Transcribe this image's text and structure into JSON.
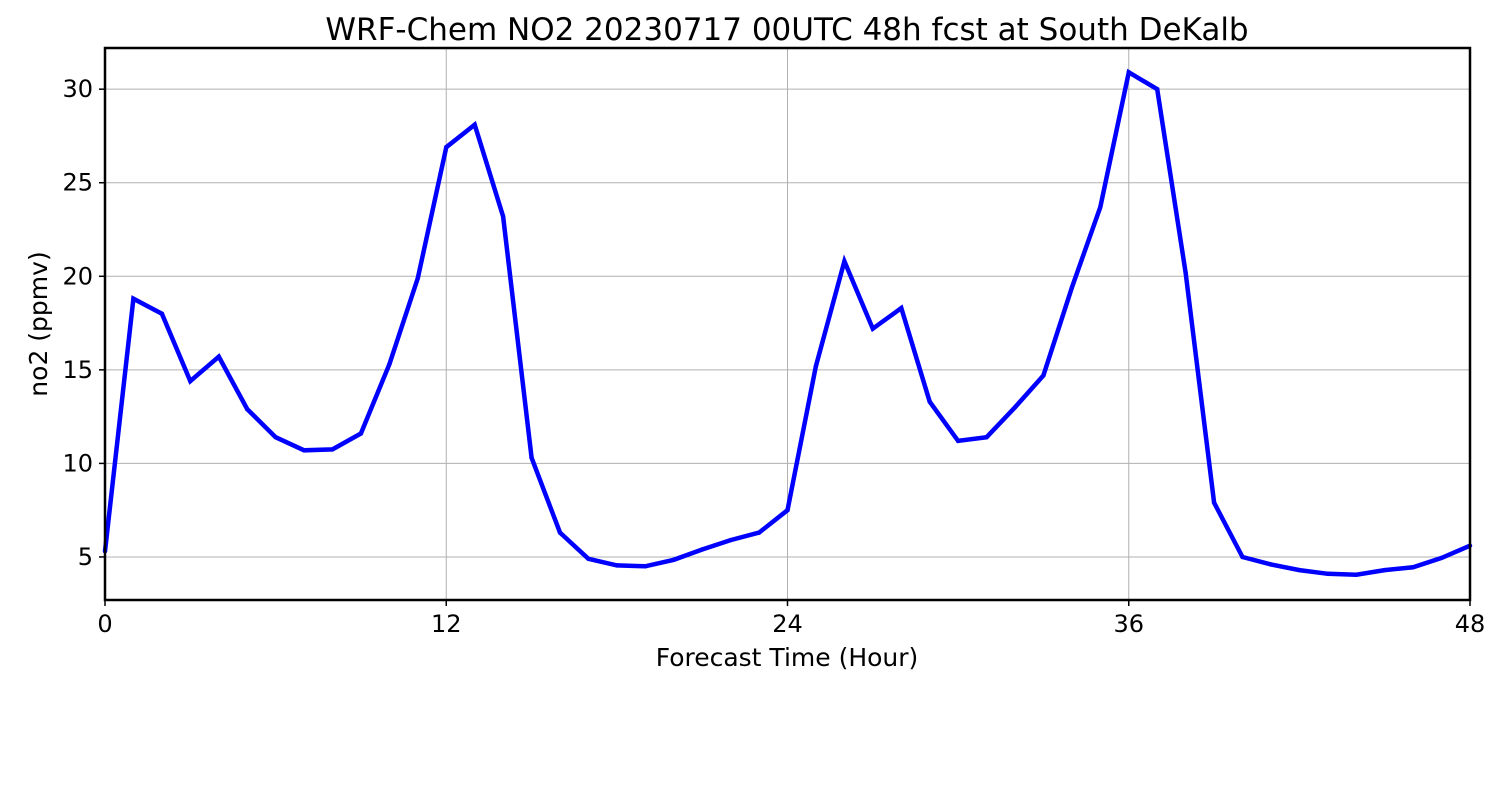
{
  "chart_data": {
    "type": "line",
    "title": "WRF-Chem NO2  20230717 00UTC 48h fcst at South DeKalb",
    "xlabel": "Forecast Time (Hour)",
    "ylabel": "no2  (ppmv)",
    "xlim": [
      0,
      48
    ],
    "ylim": [
      2.7,
      32.2
    ],
    "xticks": [
      0,
      12,
      24,
      36,
      48
    ],
    "yticks": [
      5,
      10,
      15,
      20,
      25,
      30
    ],
    "grid": true,
    "legend": "none",
    "colors": {
      "line": "#0000ff",
      "grid": "#b0b0b0",
      "axis": "#000000"
    },
    "series": [
      {
        "x": [
          0,
          1,
          2,
          3,
          4,
          5,
          6,
          7,
          8,
          9,
          10,
          11,
          12,
          13,
          14,
          15,
          16,
          17,
          18,
          19,
          20,
          21,
          22,
          23,
          24,
          25,
          26,
          27,
          28,
          29,
          30,
          31,
          32,
          33,
          34,
          35,
          36,
          37,
          38,
          39,
          40,
          41,
          42,
          43,
          44,
          45,
          46,
          47,
          48
        ],
        "values": [
          5.3,
          18.8,
          18.0,
          14.4,
          15.7,
          12.9,
          11.4,
          10.7,
          10.75,
          11.6,
          15.3,
          19.9,
          26.9,
          28.1,
          23.2,
          10.3,
          6.3,
          4.9,
          4.55,
          4.5,
          4.85,
          5.4,
          5.9,
          6.3,
          7.5,
          15.2,
          20.8,
          17.2,
          18.3,
          13.3,
          11.2,
          11.4,
          13.0,
          14.7,
          19.4,
          23.7,
          30.9,
          30.0,
          20.2,
          7.9,
          5.0,
          4.6,
          4.3,
          4.1,
          4.05,
          4.3,
          4.45,
          4.95,
          5.6
        ]
      }
    ]
  }
}
